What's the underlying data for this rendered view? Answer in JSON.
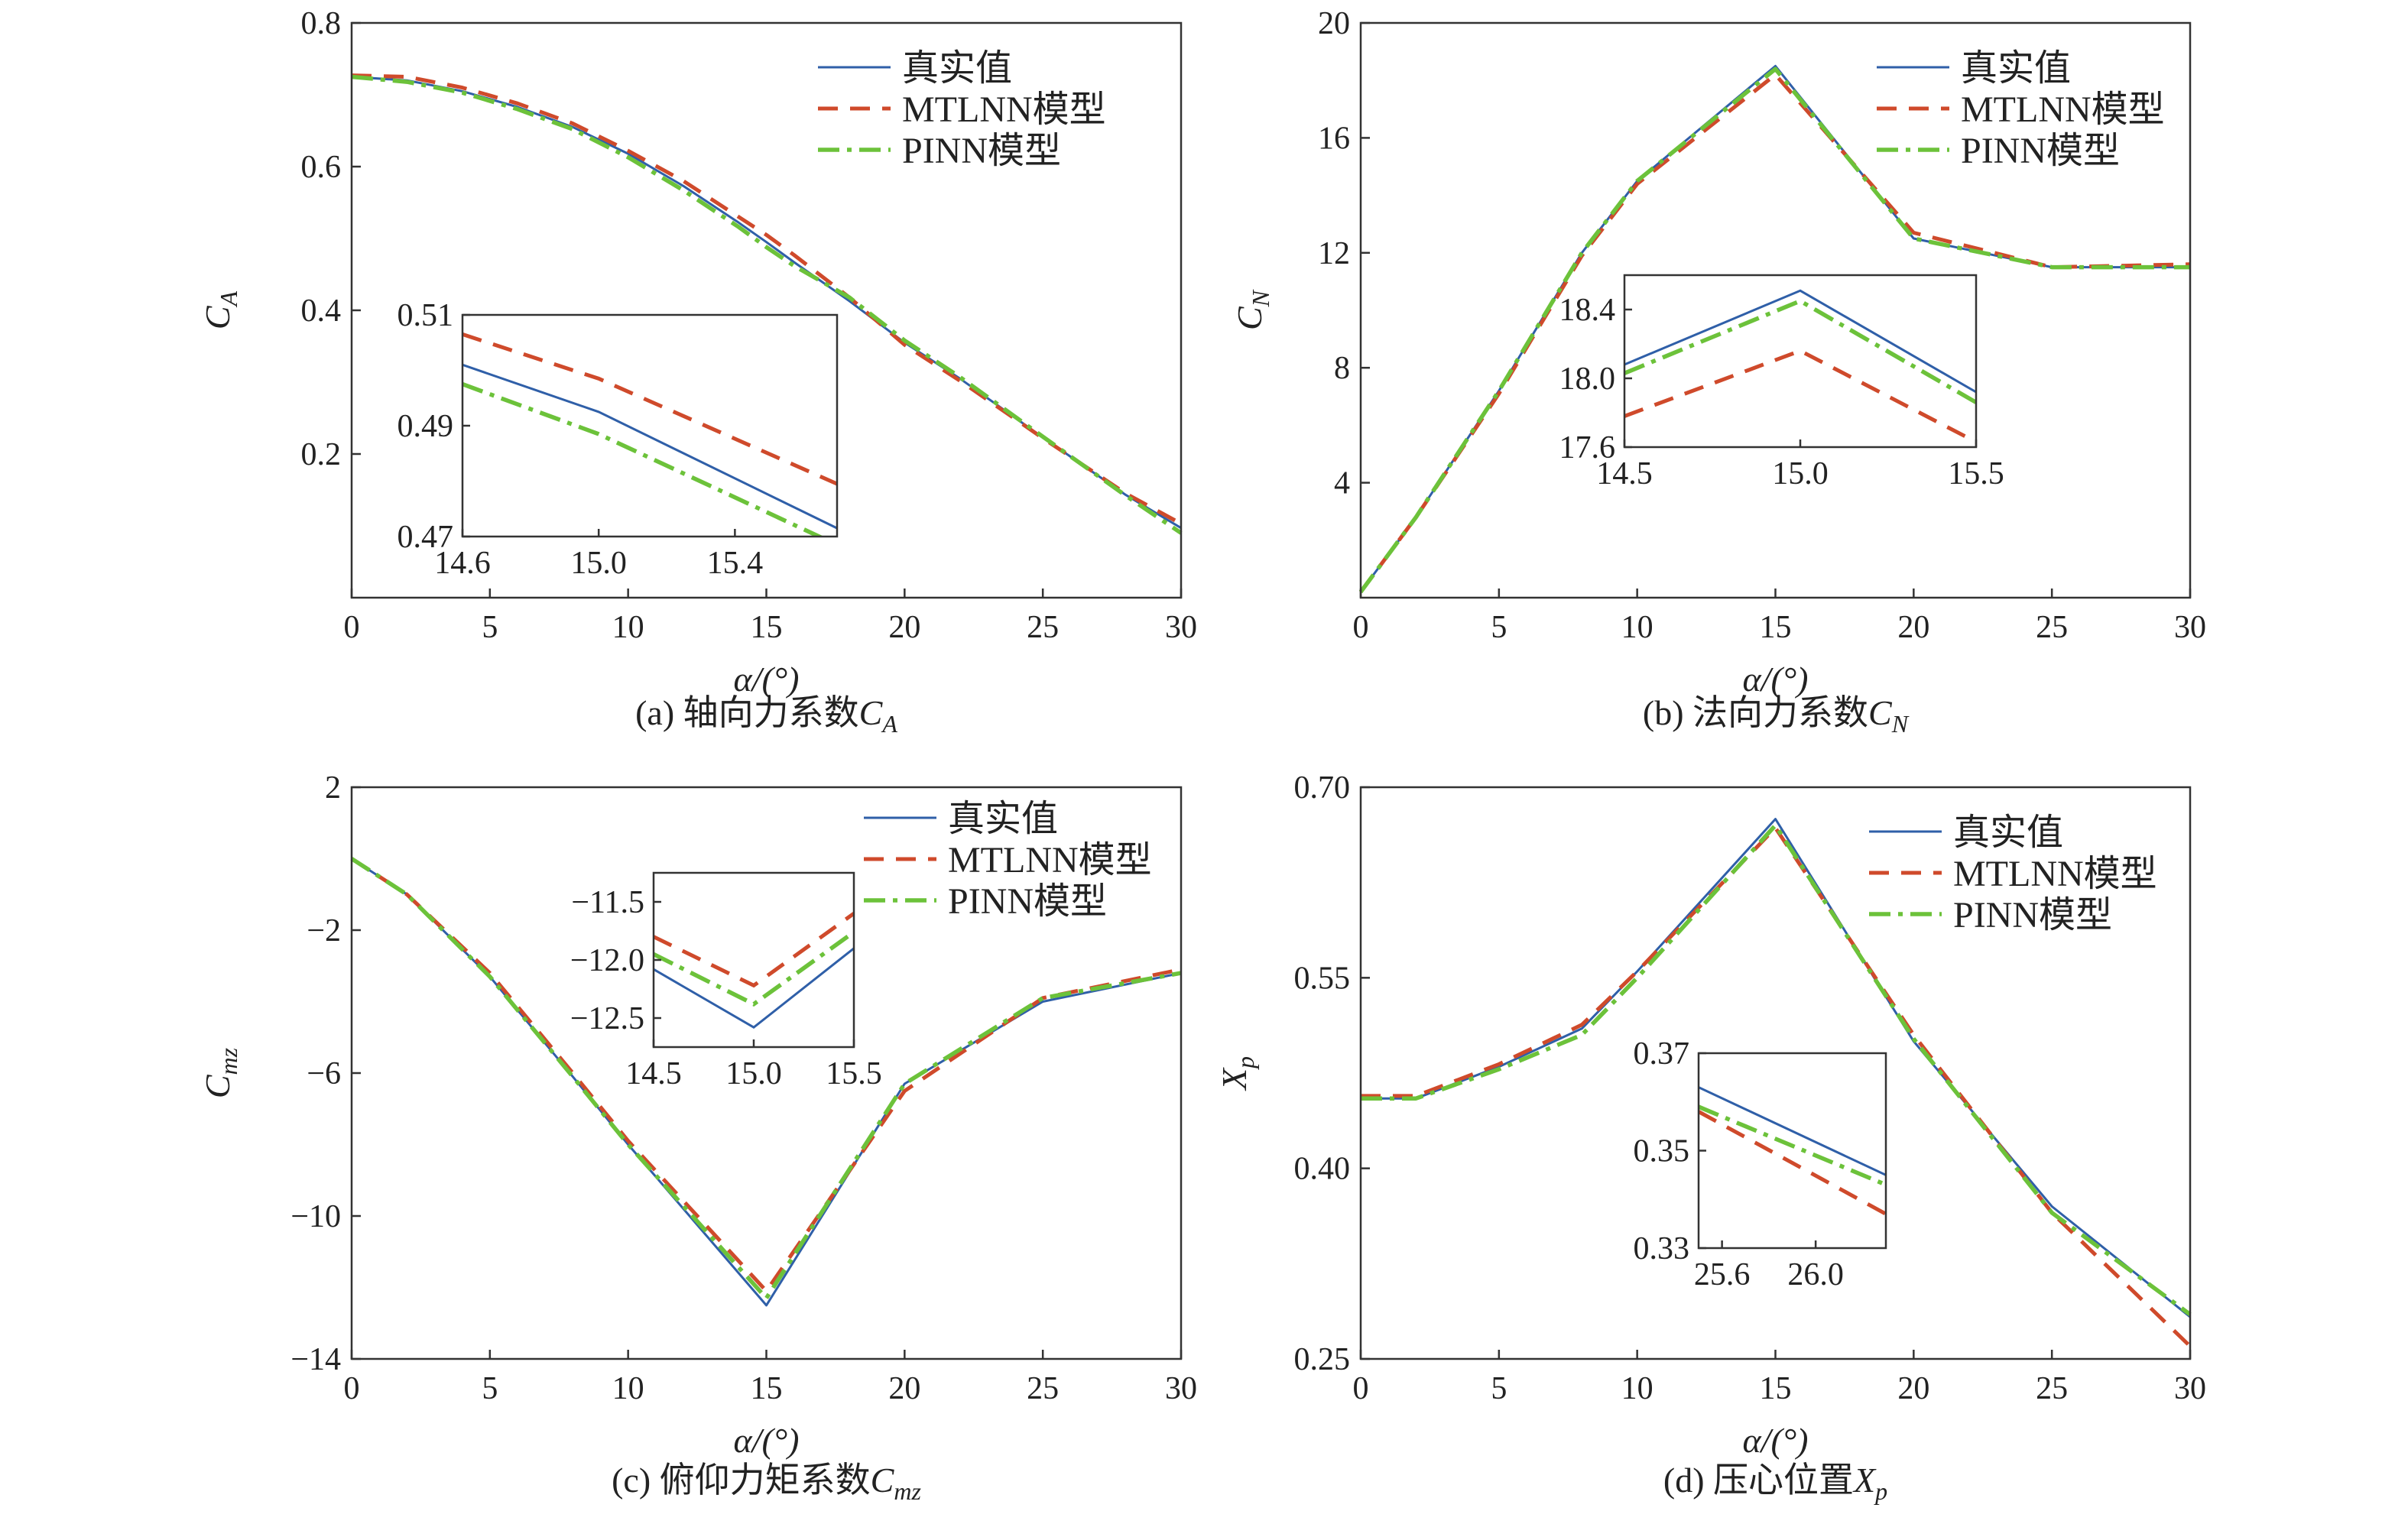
{
  "legend": [
    {
      "label": "真实值",
      "color": "#2f5fa8",
      "dash": "solid"
    },
    {
      "label": "MTLNN模型",
      "color": "#cf4a2b",
      "dash": "dashed"
    },
    {
      "label": "PINN模型",
      "color": "#6cc23a",
      "dash": "dashdot"
    }
  ],
  "chart_data": [
    {
      "type": "line",
      "caption_prefix": "(a) 轴向力系数",
      "caption_symbol": "C",
      "caption_sub": "A",
      "ylabel_symbol": "C",
      "ylabel_sub": "A",
      "xlabel": "α/(°)",
      "xlim": [
        0,
        30
      ],
      "ylim": [
        0,
        0.8
      ],
      "xticks": [
        0,
        5,
        10,
        15,
        20,
        25,
        30
      ],
      "yticks": [
        0.2,
        0.4,
        0.6,
        0.8
      ],
      "ytick_labels": [
        "0.2",
        "0.4",
        "0.6",
        "0.8"
      ],
      "x": [
        0,
        2,
        4,
        6,
        8,
        10,
        12,
        14,
        15,
        16,
        18,
        20,
        22,
        25,
        28,
        30
      ],
      "series": [
        {
          "name": "真实值",
          "values": [
            0.725,
            0.72,
            0.705,
            0.683,
            0.655,
            0.618,
            0.573,
            0.522,
            0.495,
            0.467,
            0.413,
            0.355,
            0.305,
            0.223,
            0.143,
            0.097
          ]
        },
        {
          "name": "MTLNN模型",
          "values": [
            0.727,
            0.725,
            0.71,
            0.688,
            0.66,
            0.622,
            0.58,
            0.53,
            0.505,
            0.477,
            0.418,
            0.352,
            0.302,
            0.222,
            0.145,
            0.103
          ]
        },
        {
          "name": "PINN模型",
          "values": [
            0.725,
            0.718,
            0.703,
            0.68,
            0.652,
            0.613,
            0.567,
            0.516,
            0.488,
            0.462,
            0.418,
            0.358,
            0.307,
            0.224,
            0.142,
            0.09
          ]
        }
      ],
      "inset": {
        "xlim": [
          14.6,
          15.7
        ],
        "ylim": [
          0.47,
          0.51
        ],
        "xticks": [
          14.6,
          15.0,
          15.4
        ],
        "xtick_labels": [
          "14.6",
          "15.0",
          "15.4"
        ],
        "yticks": [
          0.47,
          0.49,
          0.51
        ],
        "ytick_labels": [
          "0.47",
          "0.49",
          "0.51"
        ],
        "x": [
          14.6,
          15.0,
          15.7
        ],
        "series": [
          {
            "values": [
              0.501,
              0.4925,
              0.4715
            ]
          },
          {
            "values": [
              0.5065,
              0.4985,
              0.4795
            ]
          },
          {
            "values": [
              0.4975,
              0.4885,
              0.4685
            ]
          }
        ]
      }
    },
    {
      "type": "line",
      "caption_prefix": "(b) 法向力系数",
      "caption_symbol": "C",
      "caption_sub": "N",
      "ylabel_symbol": "C",
      "ylabel_sub": "N",
      "xlabel": "α/(°)",
      "xlim": [
        0,
        30
      ],
      "ylim": [
        0,
        20
      ],
      "xticks": [
        0,
        5,
        10,
        15,
        20,
        25,
        30
      ],
      "yticks": [
        4,
        8,
        12,
        16,
        20
      ],
      "ytick_labels": [
        "4",
        "8",
        "12",
        "16",
        "20"
      ],
      "x": [
        0,
        2,
        5,
        8,
        10,
        15,
        20,
        25,
        30
      ],
      "series": [
        {
          "name": "真实值",
          "values": [
            0.2,
            2.8,
            7.2,
            12.0,
            14.5,
            18.5,
            12.5,
            11.5,
            11.5
          ]
        },
        {
          "name": "MTLNN模型",
          "values": [
            0.2,
            2.8,
            7.1,
            11.9,
            14.4,
            18.2,
            12.7,
            11.5,
            11.6
          ]
        },
        {
          "name": "PINN模型",
          "values": [
            0.2,
            2.8,
            7.2,
            12.0,
            14.5,
            18.4,
            12.5,
            11.5,
            11.5
          ]
        }
      ],
      "inset": {
        "xlim": [
          14.5,
          15.5
        ],
        "ylim": [
          17.6,
          18.6
        ],
        "xticks": [
          14.5,
          15.0,
          15.5
        ],
        "xtick_labels": [
          "14.5",
          "15.0",
          "15.5"
        ],
        "yticks": [
          17.6,
          18.0,
          18.4
        ],
        "ytick_labels": [
          "17.6",
          "18.0",
          "18.4"
        ],
        "x": [
          14.5,
          15.0,
          15.5
        ],
        "series": [
          {
            "values": [
              18.08,
              18.51,
              17.92
            ]
          },
          {
            "values": [
              17.78,
              18.16,
              17.63
            ]
          },
          {
            "values": [
              18.03,
              18.45,
              17.86
            ]
          }
        ]
      }
    },
    {
      "type": "line",
      "caption_prefix": "(c) 俯仰力矩系数",
      "caption_symbol": "C",
      "caption_sub": "mz",
      "ylabel_symbol": "C",
      "ylabel_sub": "mz",
      "xlabel": "α/(°)",
      "xlim": [
        0,
        30
      ],
      "ylim": [
        -14,
        2
      ],
      "xticks": [
        0,
        5,
        10,
        15,
        20,
        25,
        30
      ],
      "yticks": [
        -14,
        -10,
        -6,
        -2,
        2
      ],
      "ytick_labels": [
        "−14",
        "−10",
        "−6",
        "−2",
        "2"
      ],
      "x": [
        0,
        2,
        5,
        8,
        10,
        15,
        20,
        25,
        30
      ],
      "series": [
        {
          "name": "真实值",
          "values": [
            0,
            -1.0,
            -3.3,
            -6.1,
            -8.0,
            -12.5,
            -6.3,
            -4.0,
            -3.2
          ]
        },
        {
          "name": "MTLNN模型",
          "values": [
            0,
            -1.0,
            -3.2,
            -6.0,
            -7.9,
            -12.1,
            -6.5,
            -3.9,
            -3.1
          ]
        },
        {
          "name": "PINN模型",
          "values": [
            0,
            -1.0,
            -3.3,
            -6.1,
            -8.0,
            -12.3,
            -6.3,
            -3.9,
            -3.2
          ]
        }
      ],
      "inset": {
        "xlim": [
          14.5,
          15.5
        ],
        "ylim": [
          -12.75,
          -11.25
        ],
        "xticks": [
          14.5,
          15.0,
          15.5
        ],
        "xtick_labels": [
          "14.5",
          "15.0",
          "15.5"
        ],
        "yticks": [
          -12.5,
          -12.0,
          -11.5
        ],
        "ytick_labels": [
          "−12.5",
          "−12.0",
          "−11.5"
        ],
        "x": [
          14.5,
          15.0,
          15.5
        ],
        "series": [
          {
            "values": [
              -12.08,
              -12.58,
              -11.9
            ]
          },
          {
            "values": [
              -11.8,
              -12.22,
              -11.6
            ]
          },
          {
            "values": [
              -11.95,
              -12.38,
              -11.76
            ]
          }
        ]
      }
    },
    {
      "type": "line",
      "caption_prefix": "(d) 压心位置",
      "caption_symbol": "X",
      "caption_sub": "p",
      "ylabel_symbol": "X",
      "ylabel_sub": "p",
      "xlabel": "α/(°)",
      "xlim": [
        0,
        30
      ],
      "ylim": [
        0.25,
        0.7
      ],
      "xticks": [
        0,
        5,
        10,
        15,
        20,
        25,
        30
      ],
      "yticks": [
        0.25,
        0.4,
        0.55,
        0.7
      ],
      "ytick_labels": [
        "0.25",
        "0.40",
        "0.55",
        "0.70"
      ],
      "x": [
        0,
        2,
        5,
        8,
        10,
        15,
        20,
        25,
        30
      ],
      "series": [
        {
          "name": "真实值",
          "values": [
            0.455,
            0.455,
            0.48,
            0.51,
            0.555,
            0.675,
            0.5,
            0.37,
            0.283
          ]
        },
        {
          "name": "MTLNN模型",
          "values": [
            0.457,
            0.457,
            0.482,
            0.513,
            0.555,
            0.668,
            0.505,
            0.365,
            0.26
          ]
        },
        {
          "name": "PINN模型",
          "values": [
            0.455,
            0.455,
            0.478,
            0.505,
            0.55,
            0.67,
            0.502,
            0.365,
            0.285
          ]
        }
      ],
      "inset": {
        "xlim": [
          25.5,
          26.3
        ],
        "ylim": [
          0.33,
          0.37
        ],
        "xticks": [
          25.6,
          26.0
        ],
        "xtick_labels": [
          "25.6",
          "26.0"
        ],
        "yticks": [
          0.33,
          0.35,
          0.37
        ],
        "ytick_labels": [
          "0.33",
          "0.35",
          "0.37"
        ],
        "x": [
          25.5,
          26.3
        ],
        "series": [
          {
            "values": [
              0.363,
              0.345
            ]
          },
          {
            "values": [
              0.358,
              0.337
            ]
          },
          {
            "values": [
              0.359,
              0.343
            ]
          }
        ]
      }
    }
  ]
}
